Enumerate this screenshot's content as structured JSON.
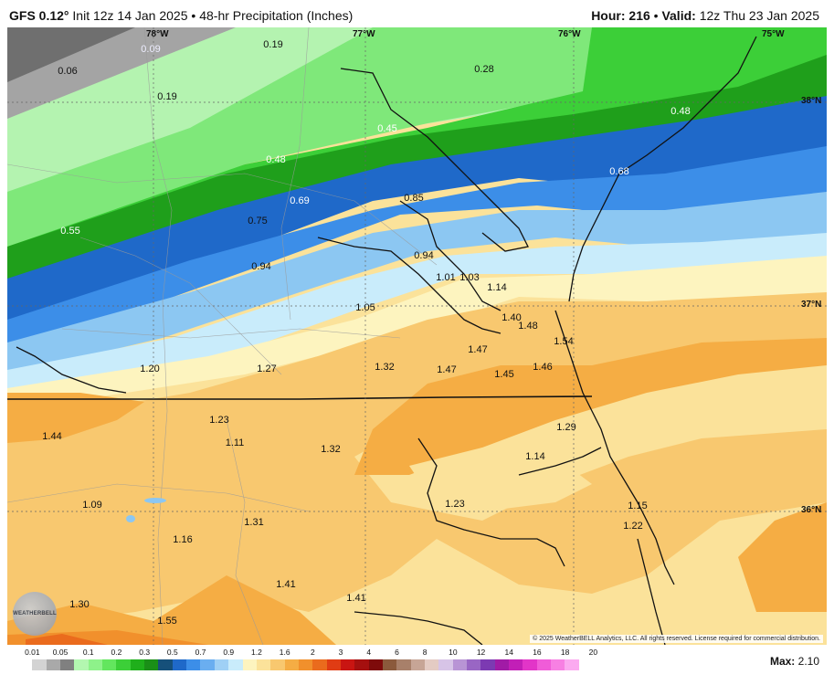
{
  "header": {
    "model": "GFS 0.12°",
    "init": "Init 12z 14 Jan 2025",
    "separator": "•",
    "product": "48-hr Precipitation (Inches)",
    "hour_label": "Hour:",
    "hour_value": "216",
    "valid_label": "Valid:",
    "valid_value": "12z Thu 23 Jan 2025"
  },
  "map": {
    "longitude_labels": [
      "78°W",
      "77°W",
      "76°W",
      "75°W"
    ],
    "latitude_labels": [
      "38°N",
      "37°N",
      "36°N"
    ],
    "values": [
      "0.09",
      "0.19",
      "0.06",
      "0.19",
      "0.28",
      "0.45",
      "0.48",
      "0.48",
      "0.68",
      "0.69",
      "0.85",
      "0.75",
      "0.55",
      "0.94",
      "0.94",
      "1.01",
      "1.03",
      "1.14",
      "1.05",
      "1.40",
      "1.48",
      "1.54",
      "1.47",
      "1.20",
      "1.27",
      "1.32",
      "1.47",
      "1.45",
      "1.46",
      "1.23",
      "1.29",
      "1.44",
      "1.11",
      "1.32",
      "1.14",
      "1.09",
      "1.23",
      "1.15",
      "1.31",
      "1.22",
      "1.16",
      "1.41",
      "1.41",
      "1.30",
      "1.55"
    ],
    "copyright": "© 2025 WeatherBELL Analytics, LLC. All rights reserved. License required for commercial distribution.",
    "logo_text": "WEATHERBELL"
  },
  "colorbar": {
    "ticks": [
      "0.01",
      "0.05",
      "0.1",
      "0.2",
      "0.3",
      "0.5",
      "0.7",
      "0.9",
      "1.2",
      "1.6",
      "2",
      "3",
      "4",
      "6",
      "8",
      "10",
      "12",
      "14",
      "16",
      "18",
      "20"
    ],
    "colors": [
      "#ffffff",
      "#d3d3d3",
      "#a9a9a9",
      "#808080",
      "#b3f7b0",
      "#8ef28a",
      "#63e65e",
      "#3ccf38",
      "#1faf1b",
      "#1a8f17",
      "#16507a",
      "#1f69c9",
      "#3c8ee8",
      "#6aaef0",
      "#9fd0f5",
      "#c9ecfb",
      "#fdf4bf",
      "#fbe29a",
      "#f8c86f",
      "#f5ad44",
      "#f1902c",
      "#ea6b1d",
      "#e03c14",
      "#c91512",
      "#a5100f",
      "#7e0b0b",
      "#8b5a3c",
      "#a8806a",
      "#c7a596",
      "#e4cbc3",
      "#d7c4e7",
      "#b894d5",
      "#9966c4",
      "#7c3ab2",
      "#a11ba6",
      "#c21fb7",
      "#e235c8",
      "#f05cd8",
      "#f780e3",
      "#fbaaf0"
    ],
    "max_label": "Max:",
    "max_value": "2.10"
  }
}
